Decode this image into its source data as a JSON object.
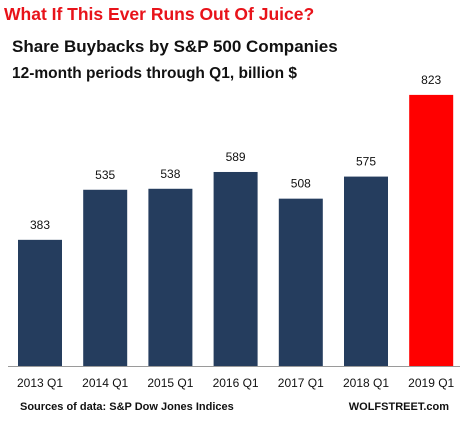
{
  "headline": "What If This Ever Runs Out Of Juice?",
  "footer": {
    "source": "Sources of data: S&P Dow Jones Indices",
    "brand": "WOLFSTREET.com"
  },
  "colors": {
    "bar": "#253d5e",
    "highlight": "#ff0000",
    "headline": "#e8131a"
  },
  "chart_data": {
    "type": "bar",
    "title": "Share Buybacks by S&P 500 Companies",
    "subtitle": "12-month periods through Q1, billion $",
    "categories": [
      "2013 Q1",
      "2014 Q1",
      "2015 Q1",
      "2016 Q1",
      "2017 Q1",
      "2018 Q1",
      "2019 Q1"
    ],
    "values": [
      383,
      535,
      538,
      589,
      508,
      575,
      823
    ],
    "highlight_index": 6,
    "ylim": [
      0,
      850
    ],
    "grid": false,
    "xlabel": "",
    "ylabel": ""
  }
}
